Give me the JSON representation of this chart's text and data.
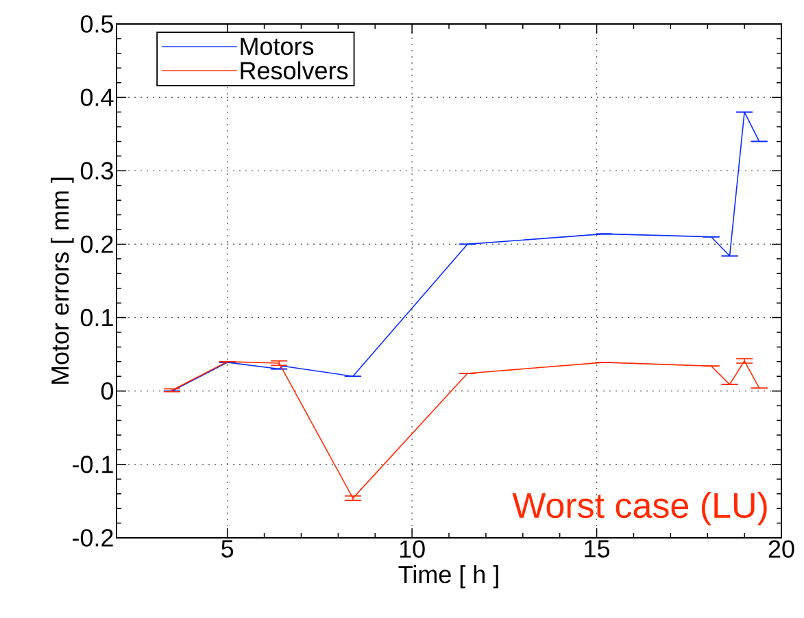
{
  "chart_data": {
    "type": "line",
    "xlabel": "Time [ h ]",
    "ylabel": "Motor errors [ mm ]",
    "xlim": [
      2,
      20
    ],
    "ylim": [
      -0.2,
      0.5
    ],
    "xticks": [
      5,
      10,
      15,
      20
    ],
    "yticks": [
      -0.2,
      -0.1,
      0,
      0.1,
      0.2,
      0.3,
      0.4,
      0.5
    ],
    "grid": true,
    "legend": "top left",
    "marker": "none",
    "line_style": "solid",
    "series": [
      {
        "name": "Motors",
        "color": "#0a2eff",
        "x": [
          3.5,
          5.0,
          6.4,
          6.5,
          8.4,
          11.5,
          15.2,
          18.1,
          18.6,
          19.0,
          19.4
        ],
        "values": [
          0,
          0.039,
          0.03,
          0.034,
          0.02,
          0.2,
          0.214,
          0.21,
          0.184,
          0.38,
          0.34
        ],
        "errors": [
          0,
          0,
          0,
          null,
          0,
          0,
          0,
          0,
          0,
          0,
          0
        ]
      },
      {
        "name": "Resolvers",
        "color": "#ff2a00",
        "x": [
          3.5,
          5.0,
          6.4,
          8.4,
          11.5,
          15.2,
          18.1,
          18.6,
          19.0,
          19.4
        ],
        "values": [
          0.001,
          0.04,
          0.038,
          -0.146,
          0.024,
          0.039,
          0.034,
          0.009,
          0.041,
          0.004
        ],
        "errors": [
          0.002,
          0,
          0.003,
          0.003,
          0,
          0,
          0,
          0,
          0.003,
          0
        ]
      }
    ],
    "annotations": [
      "Worst case (LU)"
    ]
  }
}
